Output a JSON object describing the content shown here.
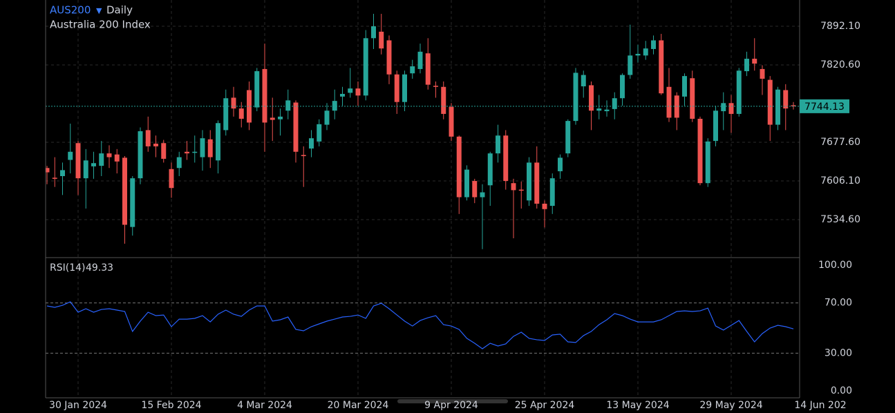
{
  "chart_data": [
    {
      "type": "candlestick",
      "title": "AUS200",
      "interval": "Daily",
      "subtitle": "Australia 200 Index",
      "categories": [
        null,
        null,
        null,
        null,
        "30 Jan 2024",
        null,
        null,
        null,
        null,
        null,
        null,
        null,
        null,
        null,
        null,
        null,
        "15 Feb 2024",
        null,
        null,
        null,
        null,
        null,
        null,
        null,
        null,
        null,
        null,
        null,
        "4 Mar 2024",
        null,
        null,
        null,
        null,
        null,
        null,
        null,
        null,
        null,
        null,
        null,
        "20 Mar 2024",
        null,
        null,
        null,
        null,
        null,
        null,
        null,
        null,
        null,
        null,
        null,
        "9 Apr 2024",
        null,
        null,
        null,
        null,
        null,
        null,
        null,
        null,
        null,
        null,
        null,
        "25 Apr 2024",
        null,
        null,
        null,
        null,
        null,
        null,
        null,
        null,
        null,
        null,
        null,
        "13 May 2024",
        null,
        null,
        null,
        null,
        null,
        null,
        null,
        null,
        null,
        null,
        null,
        "29 May 2024",
        null,
        null,
        null,
        null,
        null,
        null,
        null,
        null,
        null,
        null,
        null,
        "14 Jun 202"
      ],
      "open": [
        7630,
        7612,
        7615,
        7645,
        7676,
        7611,
        7633,
        7634,
        7657,
        7655,
        7649,
        7521,
        7611,
        7700,
        7675,
        7676,
        7628,
        7630,
        7660,
        7658,
        7650,
        7683,
        7644,
        7700,
        7760,
        7740,
        7774,
        7742,
        7813,
        7723,
        7720,
        7736,
        7751,
        7654,
        7666,
        7679,
        7710,
        7736,
        7762,
        7769,
        7777,
        7764,
        7870,
        7882,
        7866,
        7803,
        7752,
        7805,
        7813,
        7842,
        7782,
        7780,
        7743,
        7688,
        7576,
        7606,
        7576,
        7598,
        7657,
        7690,
        7602,
        7590,
        7570,
        7640,
        7564,
        7560,
        7624,
        7657,
        7717,
        7781,
        7783,
        7736,
        7735,
        7739,
        7759,
        7802,
        7838,
        7838,
        7850,
        7866,
        7780,
        7764,
        7762,
        7796,
        7721,
        7602,
        7680,
        7735,
        7750,
        7730,
        7809,
        7832,
        7813,
        7793,
        7710,
        7774,
        7746,
        null,
        null,
        null,
        null
      ],
      "high": [
        7634,
        7650,
        7640,
        7712,
        7680,
        7665,
        7660,
        7680,
        7672,
        7665,
        7652,
        7615,
        7705,
        7725,
        7690,
        7682,
        7640,
        7660,
        7680,
        7690,
        7700,
        7700,
        7718,
        7775,
        7780,
        7752,
        7790,
        7815,
        7860,
        7760,
        7740,
        7775,
        7755,
        7670,
        7700,
        7720,
        7750,
        7775,
        7780,
        7815,
        7790,
        7885,
        7915,
        7915,
        7875,
        7810,
        7810,
        7830,
        7860,
        7870,
        7790,
        7790,
        7750,
        7690,
        7635,
        7610,
        7600,
        7660,
        7710,
        7700,
        7610,
        7605,
        7650,
        7670,
        7570,
        7620,
        7655,
        7720,
        7815,
        7810,
        7790,
        7765,
        7755,
        7770,
        7805,
        7895,
        7858,
        7865,
        7875,
        7878,
        7815,
        7770,
        7805,
        7810,
        7725,
        7685,
        7745,
        7770,
        7765,
        7815,
        7845,
        7870,
        7820,
        7800,
        7780,
        7785,
        7752,
        null,
        null,
        null,
        null
      ],
      "low": [
        7600,
        7595,
        7580,
        7620,
        7580,
        7555,
        7610,
        7615,
        7630,
        7620,
        7490,
        7505,
        7600,
        7660,
        7650,
        7640,
        7575,
        7615,
        7645,
        7640,
        7625,
        7630,
        7620,
        7690,
        7725,
        7705,
        7700,
        7735,
        7660,
        7680,
        7690,
        7720,
        7640,
        7595,
        7650,
        7670,
        7700,
        7720,
        7745,
        7760,
        7745,
        7755,
        7850,
        7840,
        7785,
        7730,
        7735,
        7795,
        7805,
        7775,
        7760,
        7720,
        7680,
        7545,
        7570,
        7565,
        7480,
        7560,
        7640,
        7590,
        7500,
        7555,
        7560,
        7555,
        7520,
        7545,
        7610,
        7650,
        7710,
        7760,
        7700,
        7720,
        7725,
        7720,
        7745,
        7795,
        7825,
        7830,
        7840,
        7765,
        7715,
        7700,
        7745,
        7715,
        7598,
        7595,
        7670,
        7700,
        7695,
        7725,
        7800,
        7810,
        7765,
        7680,
        7700,
        7700,
        7738,
        null,
        null,
        null,
        null
      ],
      "close": [
        7622,
        7610,
        7626,
        7660,
        7611,
        7644,
        7639,
        7657,
        7650,
        7642,
        7525,
        7611,
        7698,
        7670,
        7670,
        7647,
        7593,
        7650,
        7657,
        7660,
        7685,
        7650,
        7713,
        7759,
        7740,
        7721,
        7714,
        7809,
        7714,
        7719,
        7725,
        7755,
        7660,
        7652,
        7685,
        7711,
        7736,
        7754,
        7767,
        7777,
        7764,
        7870,
        7892,
        7851,
        7803,
        7752,
        7803,
        7818,
        7845,
        7784,
        7780,
        7730,
        7688,
        7576,
        7627,
        7576,
        7585,
        7657,
        7690,
        7606,
        7589,
        7588,
        7640,
        7564,
        7554,
        7611,
        7649,
        7717,
        7806,
        7802,
        7736,
        7740,
        7738,
        7759,
        7802,
        7838,
        7841,
        7851,
        7866,
        7768,
        7723,
        7723,
        7800,
        7721,
        7602,
        7679,
        7736,
        7750,
        7730,
        7810,
        7832,
        7823,
        7795,
        7710,
        7775,
        7740,
        7744,
        null,
        null,
        null,
        null
      ],
      "up_color": "#26a69a",
      "down_color": "#ef5350",
      "last_price": 7744.13,
      "ylim": [
        7465.6,
        7940.6
      ],
      "yticks": [
        {
          "value": 7534.6,
          "label": "7534.60"
        },
        {
          "value": 7606.1,
          "label": "7606.10"
        },
        {
          "value": 7677.6,
          "label": "7677.60"
        },
        {
          "value": 7820.6,
          "label": "7820.60"
        },
        {
          "value": 7892.1,
          "label": "7892.10"
        }
      ],
      "grid": true
    },
    {
      "type": "line",
      "title": "RSI(14)",
      "color": "#2962ff",
      "values": [
        67.6,
        66.5,
        68.1,
        70.9,
        62.6,
        65.4,
        62.6,
        64.8,
        65.4,
        64.3,
        63.2,
        47.3,
        55.5,
        62.6,
        59.9,
        60.4,
        51.1,
        57.1,
        57.1,
        57.7,
        59.9,
        54.9,
        61.0,
        64.3,
        61.0,
        59.3,
        64.3,
        67.6,
        67.6,
        55.5,
        56.6,
        58.8,
        48.9,
        47.8,
        51.1,
        53.3,
        55.5,
        57.1,
        58.8,
        59.3,
        60.4,
        57.7,
        67.6,
        69.8,
        65.4,
        60.4,
        55.5,
        51.6,
        56.0,
        58.2,
        59.9,
        52.7,
        51.6,
        48.9,
        41.8,
        37.9,
        33.5,
        37.9,
        35.7,
        37.4,
        43.4,
        46.7,
        41.8,
        40.7,
        40.1,
        44.5,
        45.1,
        39.0,
        38.5,
        44.0,
        47.3,
        52.7,
        56.6,
        61.5,
        59.9,
        57.1,
        54.9,
        54.9,
        54.9,
        56.6,
        59.9,
        63.2,
        63.7,
        63.2,
        63.7,
        65.9,
        51.6,
        48.4,
        52.2,
        56.0,
        47.3,
        39.0,
        45.6,
        50.0,
        52.2,
        51.1,
        49.33,
        null,
        null,
        null,
        null
      ],
      "ylim": [
        -5,
        105
      ],
      "yticks": [
        {
          "value": 0,
          "label": "0.00"
        },
        {
          "value": 30,
          "label": "30.00"
        },
        {
          "value": 70,
          "label": "70.00"
        },
        {
          "value": 100,
          "label": "100.00"
        }
      ],
      "grid": true
    }
  ]
}
